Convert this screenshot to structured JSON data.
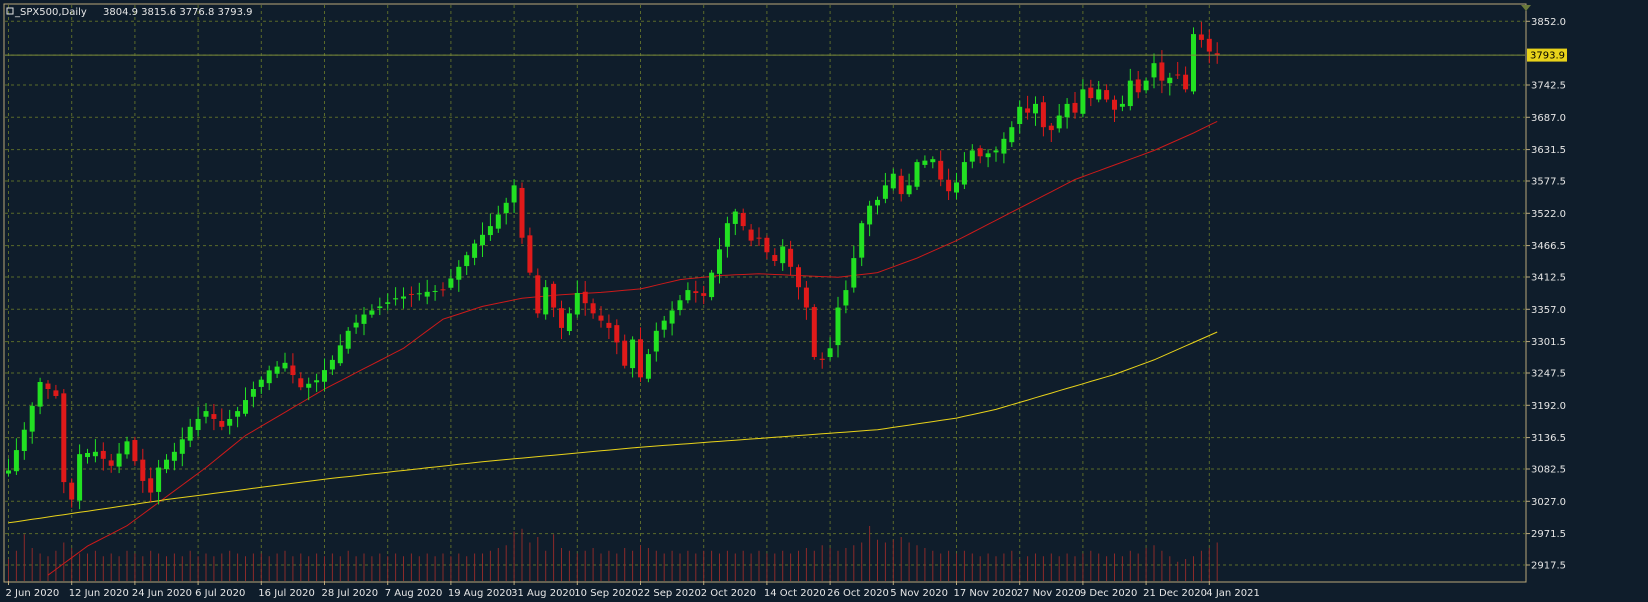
{
  "header": {
    "symbol_label": "_SPX500,Daily",
    "ohlc_text": "3804.9 3815.6 3776.8 3793.9"
  },
  "current_price_label": "3793.9",
  "colors": {
    "background": "#0f1d2b",
    "grid": "#5a6a2a",
    "frame": "#b9a77a",
    "bull_candle": "#22e022",
    "bear_candle": "#e01a1a",
    "ma_fast": "#cc1a1a",
    "ma_slow": "#e8d21a",
    "volume": "#8a2a2a",
    "price_tag": "#e8d21a",
    "current_price_line": "#7a8a3a"
  },
  "chart_data": {
    "type": "candlestick",
    "ylim": [
      2890,
      3880
    ],
    "y_ticks": [
      3852.0,
      3793.9,
      3742.5,
      3687.0,
      3631.5,
      3577.5,
      3522.0,
      3466.5,
      3412.5,
      3357.0,
      3301.5,
      3247.5,
      3192.0,
      3136.5,
      3082.5,
      3027.0,
      2971.5,
      2917.5
    ],
    "y_tick_labels": [
      "3852.0",
      "3793.9",
      "3742.5",
      "3687.0",
      "3631.5",
      "3577.5",
      "3522.0",
      "3466.5",
      "3412.5",
      "3357.0",
      "3301.5",
      "3247.5",
      "3192.0",
      "3136.5",
      "3082.5",
      "3027.0",
      "2971.5",
      "2917.5"
    ],
    "x_labels": [
      {
        "label": "2 Jun 2020",
        "index": 0
      },
      {
        "label": "12 Jun 2020",
        "index": 8
      },
      {
        "label": "24 Jun 2020",
        "index": 16
      },
      {
        "label": "6 Jul 2020",
        "index": 24
      },
      {
        "label": "16 Jul 2020",
        "index": 32
      },
      {
        "label": "28 Jul 2020",
        "index": 40
      },
      {
        "label": "7 Aug 2020",
        "index": 48
      },
      {
        "label": "19 Aug 2020",
        "index": 56
      },
      {
        "label": "31 Aug 2020",
        "index": 64
      },
      {
        "label": "10 Sep 2020",
        "index": 72
      },
      {
        "label": "22 Sep 2020",
        "index": 80
      },
      {
        "label": "2 Oct 2020",
        "index": 88
      },
      {
        "label": "14 Oct 2020",
        "index": 96
      },
      {
        "label": "26 Oct 2020",
        "index": 104
      },
      {
        "label": "5 Nov 2020",
        "index": 112
      },
      {
        "label": "17 Nov 2020",
        "index": 120
      },
      {
        "label": "27 Nov 2020",
        "index": 128
      },
      {
        "label": "9 Dec 2020",
        "index": 136
      },
      {
        "label": "21 Dec 2020",
        "index": 144
      },
      {
        "label": "4 Jan 2021",
        "index": 152
      }
    ],
    "close_anchors": [
      [
        0,
        3080
      ],
      [
        2,
        3150
      ],
      [
        4,
        3232
      ],
      [
        6,
        3208
      ],
      [
        7,
        3060
      ],
      [
        8,
        3030
      ],
      [
        9,
        3108
      ],
      [
        11,
        3112
      ],
      [
        13,
        3088
      ],
      [
        15,
        3130
      ],
      [
        17,
        3062
      ],
      [
        18,
        3042
      ],
      [
        19,
        3085
      ],
      [
        21,
        3112
      ],
      [
        23,
        3155
      ],
      [
        25,
        3182
      ],
      [
        27,
        3155
      ],
      [
        29,
        3182
      ],
      [
        31,
        3220
      ],
      [
        33,
        3252
      ],
      [
        35,
        3265
      ],
      [
        37,
        3223
      ],
      [
        39,
        3235
      ],
      [
        41,
        3270
      ],
      [
        43,
        3320
      ],
      [
        45,
        3348
      ],
      [
        47,
        3362
      ],
      [
        49,
        3376
      ],
      [
        51,
        3382
      ],
      [
        53,
        3387
      ],
      [
        55,
        3390
      ],
      [
        57,
        3430
      ],
      [
        59,
        3470
      ],
      [
        61,
        3500
      ],
      [
        63,
        3540
      ],
      [
        64,
        3570
      ],
      [
        65,
        3480
      ],
      [
        66,
        3420
      ],
      [
        67,
        3350
      ],
      [
        68,
        3395
      ],
      [
        70,
        3325
      ],
      [
        71,
        3350
      ],
      [
        72,
        3385
      ],
      [
        74,
        3350
      ],
      [
        76,
        3325
      ],
      [
        77,
        3300
      ],
      [
        78,
        3260
      ],
      [
        79,
        3305
      ],
      [
        80,
        3240
      ],
      [
        81,
        3280
      ],
      [
        82,
        3320
      ],
      [
        84,
        3355
      ],
      [
        86,
        3390
      ],
      [
        88,
        3380
      ],
      [
        89,
        3420
      ],
      [
        90,
        3460
      ],
      [
        91,
        3505
      ],
      [
        92,
        3525
      ],
      [
        93,
        3500
      ],
      [
        94,
        3475
      ],
      [
        95,
        3480
      ],
      [
        96,
        3455
      ],
      [
        97,
        3440
      ],
      [
        98,
        3465
      ],
      [
        100,
        3395
      ],
      [
        101,
        3360
      ],
      [
        102,
        3275
      ],
      [
        103,
        3270
      ],
      [
        104,
        3290
      ],
      [
        105,
        3360
      ],
      [
        106,
        3390
      ],
      [
        107,
        3445
      ],
      [
        108,
        3505
      ],
      [
        109,
        3535
      ],
      [
        110,
        3545
      ],
      [
        111,
        3570
      ],
      [
        112,
        3590
      ],
      [
        113,
        3555
      ],
      [
        114,
        3570
      ],
      [
        115,
        3610
      ],
      [
        117,
        3615
      ],
      [
        118,
        3580
      ],
      [
        119,
        3560
      ],
      [
        120,
        3575
      ],
      [
        121,
        3610
      ],
      [
        122,
        3630
      ],
      [
        123,
        3620
      ],
      [
        125,
        3630
      ],
      [
        126,
        3650
      ],
      [
        127,
        3670
      ],
      [
        128,
        3705
      ],
      [
        129,
        3695
      ],
      [
        130,
        3710
      ],
      [
        131,
        3670
      ],
      [
        132,
        3665
      ],
      [
        133,
        3690
      ],
      [
        134,
        3710
      ],
      [
        135,
        3695
      ],
      [
        136,
        3735
      ],
      [
        137,
        3720
      ],
      [
        138,
        3735
      ],
      [
        140,
        3700
      ],
      [
        141,
        3710
      ],
      [
        142,
        3750
      ],
      [
        143,
        3730
      ],
      [
        144,
        3750
      ],
      [
        145,
        3780
      ],
      [
        146,
        3750
      ],
      [
        148,
        3760
      ],
      [
        149,
        3735
      ],
      [
        150,
        3830
      ],
      [
        151,
        3820
      ],
      [
        152,
        3800
      ],
      [
        153,
        3794
      ]
    ],
    "series": [
      {
        "name": "",
        "kind": "moving-average",
        "anchors": [
          [
            5,
            2900
          ],
          [
            10,
            2950
          ],
          [
            15,
            2985
          ],
          [
            20,
            3035
          ],
          [
            25,
            3085
          ],
          [
            30,
            3140
          ],
          [
            35,
            3180
          ],
          [
            40,
            3220
          ],
          [
            45,
            3255
          ],
          [
            50,
            3290
          ],
          [
            55,
            3340
          ],
          [
            60,
            3362
          ],
          [
            65,
            3376
          ],
          [
            70,
            3382
          ],
          [
            75,
            3386
          ],
          [
            80,
            3392
          ],
          [
            85,
            3408
          ],
          [
            90,
            3415
          ],
          [
            95,
            3418
          ],
          [
            100,
            3415
          ],
          [
            105,
            3412
          ],
          [
            110,
            3420
          ],
          [
            115,
            3445
          ],
          [
            120,
            3475
          ],
          [
            125,
            3510
          ],
          [
            130,
            3545
          ],
          [
            135,
            3580
          ],
          [
            140,
            3605
          ],
          [
            145,
            3630
          ],
          [
            150,
            3660
          ],
          [
            153,
            3680
          ]
        ]
      },
      {
        "name": "",
        "kind": "moving-average",
        "anchors": [
          [
            0,
            2990
          ],
          [
            20,
            3030
          ],
          [
            40,
            3065
          ],
          [
            60,
            3095
          ],
          [
            80,
            3120
          ],
          [
            100,
            3140
          ],
          [
            110,
            3150
          ],
          [
            120,
            3170
          ],
          [
            125,
            3185
          ],
          [
            130,
            3205
          ],
          [
            135,
            3225
          ],
          [
            140,
            3245
          ],
          [
            145,
            3270
          ],
          [
            150,
            3300
          ],
          [
            153,
            3318
          ]
        ]
      }
    ],
    "volume_heights": [
      0.4,
      0.55,
      0.85,
      0.6,
      0.5,
      0.45,
      0.55,
      0.7,
      0.6,
      0.5,
      0.5,
      0.55,
      0.45,
      0.5,
      0.45,
      0.55,
      0.5,
      0.45,
      0.55,
      0.5,
      0.45,
      0.5,
      0.45,
      0.55,
      0.45,
      0.5,
      0.45,
      0.5,
      0.55,
      0.5,
      0.45,
      0.5,
      0.5,
      0.45,
      0.5,
      0.55,
      0.45,
      0.5,
      0.45,
      0.5,
      0.45,
      0.5,
      0.45,
      0.55,
      0.45,
      0.5,
      0.45,
      0.5,
      0.45,
      0.5,
      0.45,
      0.5,
      0.45,
      0.5,
      0.45,
      0.5,
      0.45,
      0.5,
      0.45,
      0.5,
      0.5,
      0.55,
      0.6,
      0.65,
      0.9,
      0.95,
      0.7,
      0.8,
      0.55,
      0.85,
      0.6,
      0.55,
      0.5,
      0.55,
      0.6,
      0.5,
      0.55,
      0.5,
      0.6,
      0.55,
      0.65,
      0.6,
      0.55,
      0.5,
      0.55,
      0.5,
      0.55,
      0.5,
      0.55,
      0.55,
      0.5,
      0.55,
      0.5,
      0.55,
      0.5,
      0.55,
      0.5,
      0.5,
      0.55,
      0.5,
      0.55,
      0.6,
      0.55,
      0.65,
      0.6,
      0.55,
      0.6,
      0.65,
      0.7,
      1.0,
      0.75,
      0.7,
      0.75,
      0.8,
      0.7,
      0.65,
      0.6,
      0.55,
      0.5,
      0.55,
      0.5,
      0.55,
      0.5,
      0.45,
      0.5,
      0.45,
      0.5,
      0.55,
      0.4,
      0.45,
      0.5,
      0.45,
      0.5,
      0.45,
      0.5,
      0.45,
      0.5,
      0.55,
      0.5,
      0.45,
      0.5,
      0.45,
      0.55,
      0.5,
      0.6,
      0.65,
      0.55,
      0.45,
      0.35,
      0.4,
      0.45,
      0.55,
      0.6,
      0.7,
      0.65,
      0.55
    ]
  }
}
